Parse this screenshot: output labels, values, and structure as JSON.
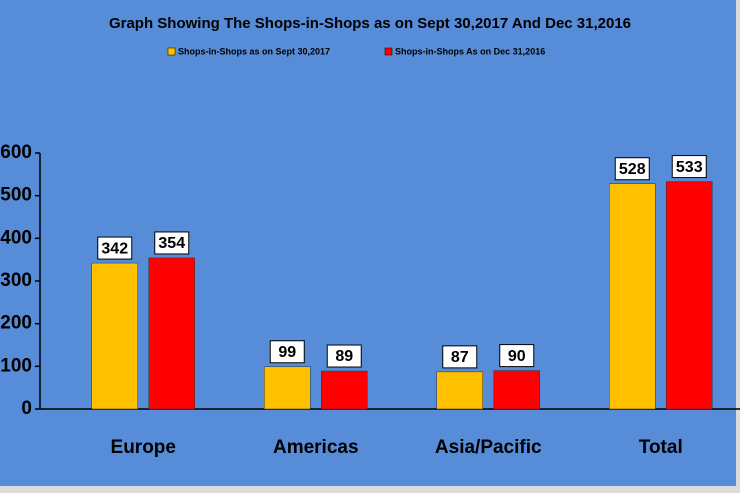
{
  "chart_data": {
    "type": "bar",
    "title": "Graph Showing The Shops-in-Shops as on Sept 30,2017 And Dec 31,2016",
    "categories": [
      "Europe",
      "Americas",
      "Asia/Pacific",
      "Total"
    ],
    "series": [
      {
        "name": "Shops-in-Shops  as on Sept 30,2017",
        "color": "#ffc000",
        "values": [
          342,
          99,
          87,
          528
        ]
      },
      {
        "name": "Shops-in-Shops  As on Dec 31,2016",
        "color": "#ff0000",
        "values": [
          354,
          89,
          90,
          533
        ]
      }
    ],
    "ylim": [
      0,
      600
    ],
    "yticks": [
      0,
      100,
      200,
      300,
      400,
      500,
      600
    ],
    "grid": false,
    "legend": "top"
  }
}
